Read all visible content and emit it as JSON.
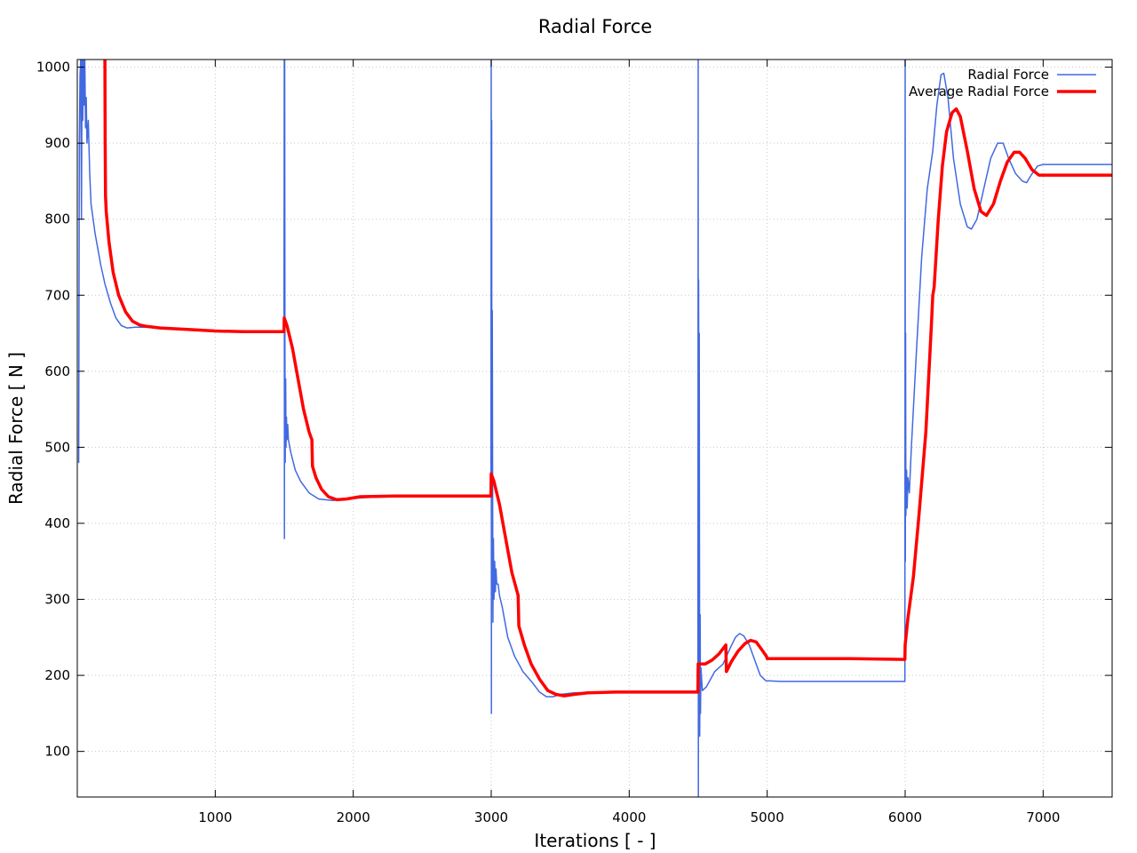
{
  "chart_data": {
    "type": "line",
    "title": "Radial Force",
    "xlabel": "Iterations [ - ]",
    "ylabel": "Radial Force [ N ]",
    "xlim": [
      0,
      7500
    ],
    "ylim": [
      40,
      1010
    ],
    "xticks": [
      1000,
      2000,
      3000,
      4000,
      5000,
      6000,
      7000
    ],
    "yticks": [
      100,
      200,
      300,
      400,
      500,
      600,
      700,
      800,
      900,
      1000
    ],
    "grid": true,
    "legend_position": "top-right",
    "series": [
      {
        "name": "Radial Force",
        "color": "#4169e1",
        "line_width": 1.5,
        "points": [
          [
            10,
            480
          ],
          [
            15,
            900
          ],
          [
            20,
            990
          ],
          [
            25,
            1010
          ],
          [
            30,
            800
          ],
          [
            35,
            1010
          ],
          [
            40,
            930
          ],
          [
            45,
            1010
          ],
          [
            50,
            950
          ],
          [
            55,
            1010
          ],
          [
            60,
            920
          ],
          [
            65,
            960
          ],
          [
            70,
            900
          ],
          [
            80,
            930
          ],
          [
            90,
            860
          ],
          [
            100,
            820
          ],
          [
            130,
            780
          ],
          [
            170,
            740
          ],
          [
            200,
            715
          ],
          [
            240,
            690
          ],
          [
            280,
            670
          ],
          [
            320,
            660
          ],
          [
            360,
            657
          ],
          [
            420,
            658
          ],
          [
            500,
            658
          ],
          [
            600,
            657
          ],
          [
            800,
            655
          ],
          [
            1000,
            653
          ],
          [
            1200,
            652
          ],
          [
            1498,
            652
          ],
          [
            1500,
            1010
          ],
          [
            1501,
            380
          ],
          [
            1503,
            1010
          ],
          [
            1505,
            620
          ],
          [
            1507,
            480
          ],
          [
            1510,
            590
          ],
          [
            1513,
            500
          ],
          [
            1516,
            540
          ],
          [
            1520,
            510
          ],
          [
            1525,
            530
          ],
          [
            1530,
            510
          ],
          [
            1545,
            495
          ],
          [
            1580,
            470
          ],
          [
            1620,
            455
          ],
          [
            1680,
            440
          ],
          [
            1750,
            432
          ],
          [
            1850,
            430
          ],
          [
            1950,
            432
          ],
          [
            2100,
            434
          ],
          [
            2300,
            435
          ],
          [
            2600,
            435
          ],
          [
            2998,
            435
          ],
          [
            3000,
            1010
          ],
          [
            3001,
            150
          ],
          [
            3003,
            930
          ],
          [
            3005,
            300
          ],
          [
            3008,
            680
          ],
          [
            3012,
            270
          ],
          [
            3016,
            380
          ],
          [
            3020,
            300
          ],
          [
            3025,
            350
          ],
          [
            3030,
            310
          ],
          [
            3035,
            340
          ],
          [
            3040,
            320
          ],
          [
            3050,
            320
          ],
          [
            3060,
            305
          ],
          [
            3080,
            290
          ],
          [
            3120,
            250
          ],
          [
            3170,
            225
          ],
          [
            3230,
            205
          ],
          [
            3300,
            190
          ],
          [
            3350,
            178
          ],
          [
            3400,
            172
          ],
          [
            3450,
            172
          ],
          [
            3500,
            175
          ],
          [
            3600,
            177
          ],
          [
            3800,
            178
          ],
          [
            4100,
            178
          ],
          [
            4498,
            178
          ],
          [
            4500,
            1010
          ],
          [
            4501,
            40
          ],
          [
            4503,
            720
          ],
          [
            4505,
            160
          ],
          [
            4508,
            650
          ],
          [
            4511,
            120
          ],
          [
            4514,
            280
          ],
          [
            4517,
            150
          ],
          [
            4520,
            210
          ],
          [
            4530,
            180
          ],
          [
            4560,
            185
          ],
          [
            4620,
            205
          ],
          [
            4680,
            215
          ],
          [
            4730,
            235
          ],
          [
            4770,
            250
          ],
          [
            4800,
            255
          ],
          [
            4830,
            252
          ],
          [
            4870,
            240
          ],
          [
            4910,
            220
          ],
          [
            4950,
            200
          ],
          [
            4990,
            193
          ],
          [
            5100,
            192
          ],
          [
            5500,
            192
          ],
          [
            5998,
            192
          ],
          [
            6000,
            1010
          ],
          [
            6001,
            350
          ],
          [
            6003,
            650
          ],
          [
            6005,
            410
          ],
          [
            6010,
            470
          ],
          [
            6015,
            420
          ],
          [
            6020,
            460
          ],
          [
            6030,
            440
          ],
          [
            6045,
            500
          ],
          [
            6080,
            620
          ],
          [
            6120,
            750
          ],
          [
            6160,
            840
          ],
          [
            6200,
            890
          ],
          [
            6230,
            950
          ],
          [
            6260,
            990
          ],
          [
            6280,
            992
          ],
          [
            6310,
            960
          ],
          [
            6350,
            880
          ],
          [
            6400,
            820
          ],
          [
            6450,
            790
          ],
          [
            6480,
            787
          ],
          [
            6520,
            800
          ],
          [
            6570,
            840
          ],
          [
            6620,
            880
          ],
          [
            6670,
            900
          ],
          [
            6710,
            900
          ],
          [
            6750,
            880
          ],
          [
            6800,
            860
          ],
          [
            6850,
            850
          ],
          [
            6880,
            848
          ],
          [
            6920,
            860
          ],
          [
            6960,
            870
          ],
          [
            7000,
            872
          ],
          [
            7200,
            872
          ],
          [
            7500,
            872
          ]
        ]
      },
      {
        "name": "Average Radial Force",
        "color": "#ff0000",
        "line_width": 3.5,
        "points": [
          [
            200,
            1010
          ],
          [
            202,
            900
          ],
          [
            205,
            830
          ],
          [
            210,
            810
          ],
          [
            230,
            770
          ],
          [
            260,
            730
          ],
          [
            300,
            700
          ],
          [
            350,
            678
          ],
          [
            400,
            666
          ],
          [
            450,
            661
          ],
          [
            500,
            659
          ],
          [
            600,
            657
          ],
          [
            800,
            655
          ],
          [
            1000,
            653
          ],
          [
            1200,
            652
          ],
          [
            1498,
            652
          ],
          [
            1500,
            670
          ],
          [
            1520,
            660
          ],
          [
            1560,
            630
          ],
          [
            1600,
            590
          ],
          [
            1640,
            550
          ],
          [
            1680,
            520
          ],
          [
            1700,
            510
          ],
          [
            1705,
            475
          ],
          [
            1730,
            460
          ],
          [
            1770,
            445
          ],
          [
            1820,
            435
          ],
          [
            1880,
            431
          ],
          [
            1950,
            432
          ],
          [
            2050,
            435
          ],
          [
            2300,
            436
          ],
          [
            2998,
            436
          ],
          [
            3000,
            465
          ],
          [
            3020,
            455
          ],
          [
            3060,
            425
          ],
          [
            3100,
            385
          ],
          [
            3150,
            335
          ],
          [
            3195,
            305
          ],
          [
            3200,
            265
          ],
          [
            3240,
            240
          ],
          [
            3290,
            215
          ],
          [
            3350,
            195
          ],
          [
            3410,
            180
          ],
          [
            3470,
            175
          ],
          [
            3530,
            173
          ],
          [
            3600,
            175
          ],
          [
            3700,
            177
          ],
          [
            3900,
            178
          ],
          [
            4200,
            178
          ],
          [
            4498,
            178
          ],
          [
            4500,
            215
          ],
          [
            4550,
            215
          ],
          [
            4600,
            220
          ],
          [
            4650,
            228
          ],
          [
            4700,
            240
          ],
          [
            4705,
            205
          ],
          [
            4740,
            218
          ],
          [
            4790,
            232
          ],
          [
            4840,
            242
          ],
          [
            4880,
            246
          ],
          [
            4920,
            244
          ],
          [
            4960,
            234
          ],
          [
            4995,
            225
          ],
          [
            5000,
            222
          ],
          [
            5200,
            222
          ],
          [
            5600,
            222
          ],
          [
            5998,
            221
          ],
          [
            6000,
            240
          ],
          [
            6020,
            275
          ],
          [
            6060,
            330
          ],
          [
            6100,
            410
          ],
          [
            6150,
            520
          ],
          [
            6190,
            660
          ],
          [
            6200,
            700
          ],
          [
            6210,
            710
          ],
          [
            6240,
            800
          ],
          [
            6270,
            870
          ],
          [
            6300,
            915
          ],
          [
            6340,
            940
          ],
          [
            6370,
            945
          ],
          [
            6400,
            935
          ],
          [
            6450,
            890
          ],
          [
            6500,
            840
          ],
          [
            6550,
            810
          ],
          [
            6590,
            805
          ],
          [
            6640,
            820
          ],
          [
            6690,
            850
          ],
          [
            6740,
            875
          ],
          [
            6790,
            888
          ],
          [
            6830,
            888
          ],
          [
            6870,
            880
          ],
          [
            6920,
            865
          ],
          [
            6970,
            858
          ],
          [
            7000,
            858
          ],
          [
            7200,
            858
          ],
          [
            7500,
            858
          ]
        ]
      }
    ]
  }
}
